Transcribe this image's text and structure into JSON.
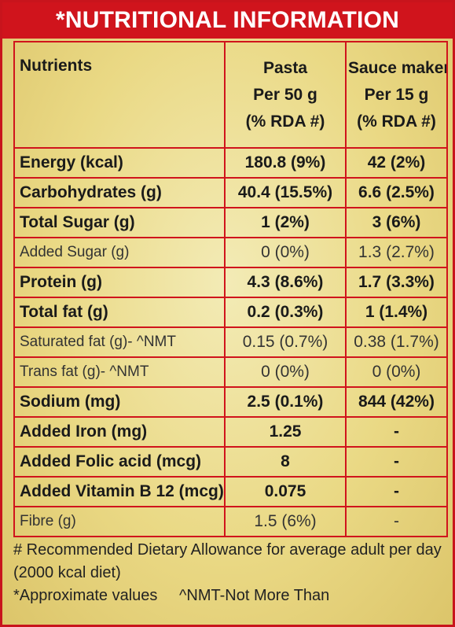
{
  "title": "*NUTRITIONAL INFORMATION",
  "headers": {
    "nutrients": "Nutrients",
    "pasta": [
      "Pasta",
      "Per 50 g",
      "(% RDA #)"
    ],
    "sauce": [
      "Sauce maker",
      "Per 15 g",
      "(% RDA #)"
    ]
  },
  "rows": [
    {
      "name": "Energy (kcal)",
      "pasta": "180.8 (9%)",
      "sauce": "42 (2%)",
      "bold": true
    },
    {
      "name": "Carbohydrates (g)",
      "pasta": "40.4 (15.5%)",
      "sauce": "6.6 (2.5%)",
      "bold": true
    },
    {
      "name": "Total Sugar (g)",
      "pasta": "1 (2%)",
      "sauce": "3 (6%)",
      "bold": true
    },
    {
      "name": "Added Sugar (g)",
      "pasta": "0 (0%)",
      "sauce": "1.3 (2.7%)",
      "bold": false
    },
    {
      "name": "Protein (g)",
      "pasta": "4.3 (8.6%)",
      "sauce": "1.7 (3.3%)",
      "bold": true
    },
    {
      "name": "Total fat (g)",
      "pasta": "0.2 (0.3%)",
      "sauce": "1 (1.4%)",
      "bold": true
    },
    {
      "name": "Saturated fat (g)- ^NMT",
      "pasta": "0.15 (0.7%)",
      "sauce": "0.38 (1.7%)",
      "bold": false
    },
    {
      "name": "Trans fat (g)- ^NMT",
      "pasta": "0 (0%)",
      "sauce": "0 (0%)",
      "bold": false
    },
    {
      "name": "Sodium (mg)",
      "pasta": "2.5 (0.1%)",
      "sauce": "844 (42%)",
      "bold": true
    },
    {
      "name": "Added Iron (mg)",
      "pasta": "1.25",
      "sauce": "-",
      "bold": true
    },
    {
      "name": "Added Folic acid (mcg)",
      "pasta": "8",
      "sauce": "-",
      "bold": true
    },
    {
      "name": "Added Vitamin B 12 (mcg)",
      "pasta": "0.075",
      "sauce": "-",
      "bold": true
    },
    {
      "name": "Fibre (g)",
      "pasta": "1.5 (6%)",
      "sauce": "-",
      "bold": false
    }
  ],
  "footer": {
    "rda_note": "# Recommended Dietary Allowance for average adult per day (2000 kcal diet)",
    "approx_note": "*Approximate values",
    "nmt_note": "^NMT-Not More Than"
  },
  "colors": {
    "accent": "#d0141c",
    "background": "#ead985"
  }
}
